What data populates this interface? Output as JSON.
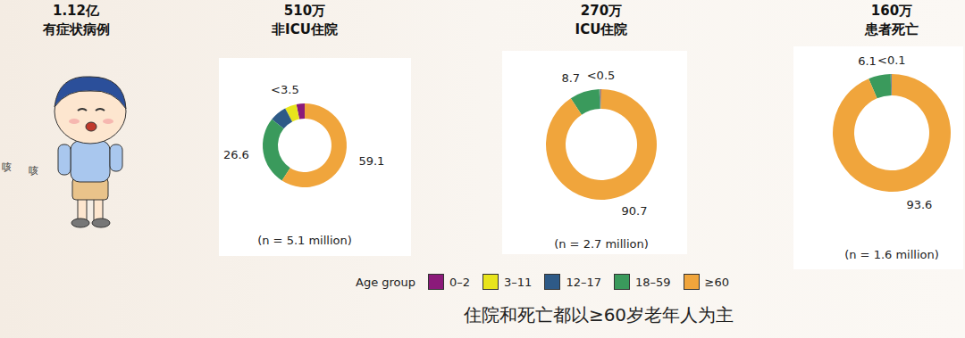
{
  "panel": {
    "title": "1.12亿",
    "subtitle": "有症状病例",
    "sound": [
      "咳",
      "咳"
    ]
  },
  "legend_title": "Age group",
  "caption": "住院和死亡都以≥60岁老年人为主",
  "chart_data": [
    {
      "type": "pie",
      "title": "510万",
      "subtitle": "非ICU住院",
      "annotation": "(n = 5.1 million)",
      "categories": [
        "0–2",
        "3–11",
        "12–17",
        "18–59",
        "≥60"
      ],
      "values": [
        3.2,
        4.5,
        6.6,
        26.6,
        59.1
      ],
      "value_labels": [
        "<3.5",
        null,
        null,
        "26.6",
        "59.1"
      ],
      "colors": [
        "#8b1a7a",
        "#e8e41c",
        "#2e5a87",
        "#3a9a5c",
        "#f0a53c"
      ],
      "data_labels": true
    },
    {
      "type": "pie",
      "title": "270万",
      "subtitle": "ICU住院",
      "annotation": "(n = 2.7 million)",
      "categories": [
        "0–2",
        "3–11",
        "12–17",
        "18–59",
        "≥60"
      ],
      "values": [
        0.2,
        0.2,
        0.2,
        8.7,
        90.7
      ],
      "value_labels": [
        "<0.5",
        null,
        null,
        "8.7",
        "90.7"
      ],
      "colors": [
        "#8b1a7a",
        "#e8e41c",
        "#2e5a87",
        "#3a9a5c",
        "#f0a53c"
      ],
      "data_labels": true
    },
    {
      "type": "pie",
      "title": "160万",
      "subtitle": "患者死亡",
      "annotation": "(n = 1.6 million)",
      "categories": [
        "0–2",
        "3–11",
        "12–17",
        "18–59",
        "≥60"
      ],
      "values": [
        0.05,
        0.05,
        0.2,
        6.1,
        93.6
      ],
      "value_labels": [
        "<0.1",
        null,
        null,
        "6.1",
        "93.6"
      ],
      "colors": [
        "#8b1a7a",
        "#e8e41c",
        "#2e5a87",
        "#3a9a5c",
        "#f0a53c"
      ],
      "data_labels": true
    }
  ]
}
